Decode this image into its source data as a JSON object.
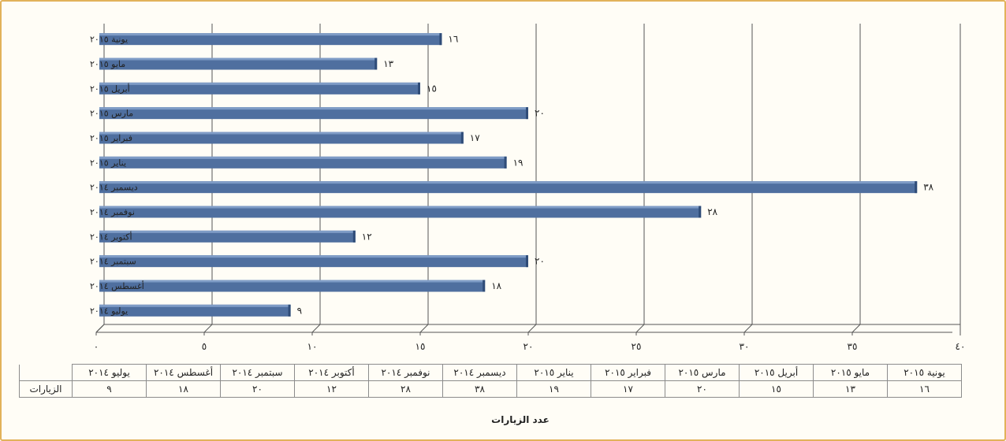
{
  "chart_data": {
    "type": "bar",
    "orientation": "horizontal",
    "categories": [
      "يونية ٢٠١٥",
      "مايو ٢٠١٥",
      "أبريل ٢٠١٥",
      "مارس ٢٠١٥",
      "فبراير ٢٠١٥",
      "يناير ٢٠١٥",
      "ديسمبر ٢٠١٤",
      "نوفمبر ٢٠١٤",
      "أكتوبر ٢٠١٤",
      "سبتمبر ٢٠١٤",
      "أغسطس ٢٠١٤",
      "يوليو ٢٠١٤"
    ],
    "values": [
      16,
      13,
      15,
      20,
      17,
      19,
      38,
      28,
      12,
      20,
      18,
      9
    ],
    "value_labels": [
      "١٦",
      "١٣",
      "١٥",
      "٢٠",
      "١٧",
      "١٩",
      "٣٨",
      "٢٨",
      "١٢",
      "٢٠",
      "١٨",
      "٩"
    ],
    "xlim": [
      0,
      40
    ],
    "x_ticks": [
      0,
      5,
      10,
      15,
      20,
      25,
      30,
      35,
      40
    ],
    "x_tick_labels": [
      "٠",
      "٥",
      "١٠",
      "١٥",
      "٢٠",
      "٢٥",
      "٣٠",
      "٣٥",
      "٤٠"
    ],
    "xlabel": "عدد الزيارات",
    "grid": true,
    "bar_color": "#4f6f9f",
    "table": {
      "row_header": "الزيارات",
      "columns": [
        "يونية ٢٠١٥",
        "مايو ٢٠١٥",
        "أبريل ٢٠١٥",
        "مارس ٢٠١٥",
        "فبراير ٢٠١٥",
        "يناير ٢٠١٥",
        "ديسمبر ٢٠١٤",
        "نوفمبر ٢٠١٤",
        "أكتوبر ٢٠١٤",
        "سبتمبر ٢٠١٤",
        "أغسطس ٢٠١٤",
        "يوليو ٢٠١٤"
      ],
      "values": [
        "١٦",
        "١٣",
        "١٥",
        "٢٠",
        "١٧",
        "١٩",
        "٣٨",
        "٢٨",
        "١٢",
        "٢٠",
        "١٨",
        "٩"
      ]
    }
  }
}
